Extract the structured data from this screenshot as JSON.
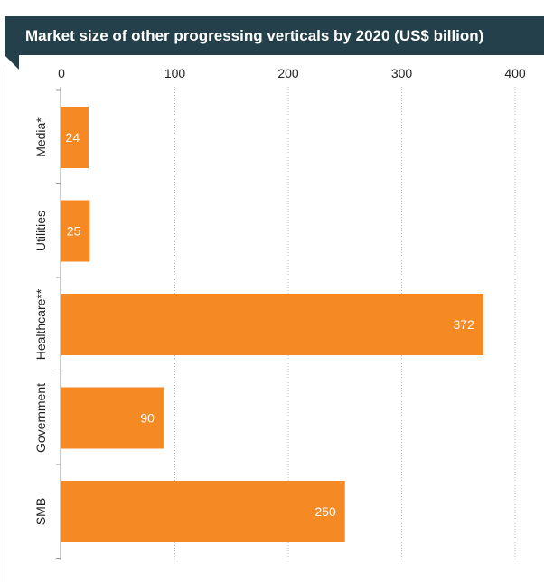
{
  "chart_data": {
    "type": "bar",
    "orientation": "horizontal",
    "title": "Market size of other progressing verticals by 2020 (US$ billion)",
    "categories": [
      "Media*",
      "Utilities",
      "Healthcare**",
      "Government",
      "SMB"
    ],
    "values": [
      24,
      25,
      372,
      90,
      250
    ],
    "data_labels": [
      "24",
      "25",
      "372",
      "90",
      "250"
    ],
    "xlim": [
      0,
      400
    ],
    "ticks": [
      0,
      100,
      200,
      300,
      400
    ],
    "tick_labels": [
      "0",
      "100",
      "200",
      "300",
      "400"
    ],
    "x_axis_position": "top",
    "grid": "vertical dotted",
    "legend": "none",
    "colors": {
      "bar": "#f58a25",
      "banner": "#24404a",
      "title_text": "#ffffff",
      "label_text": "#ffffff",
      "axis_text": "#222222",
      "grid": "#bbbbbb"
    }
  }
}
